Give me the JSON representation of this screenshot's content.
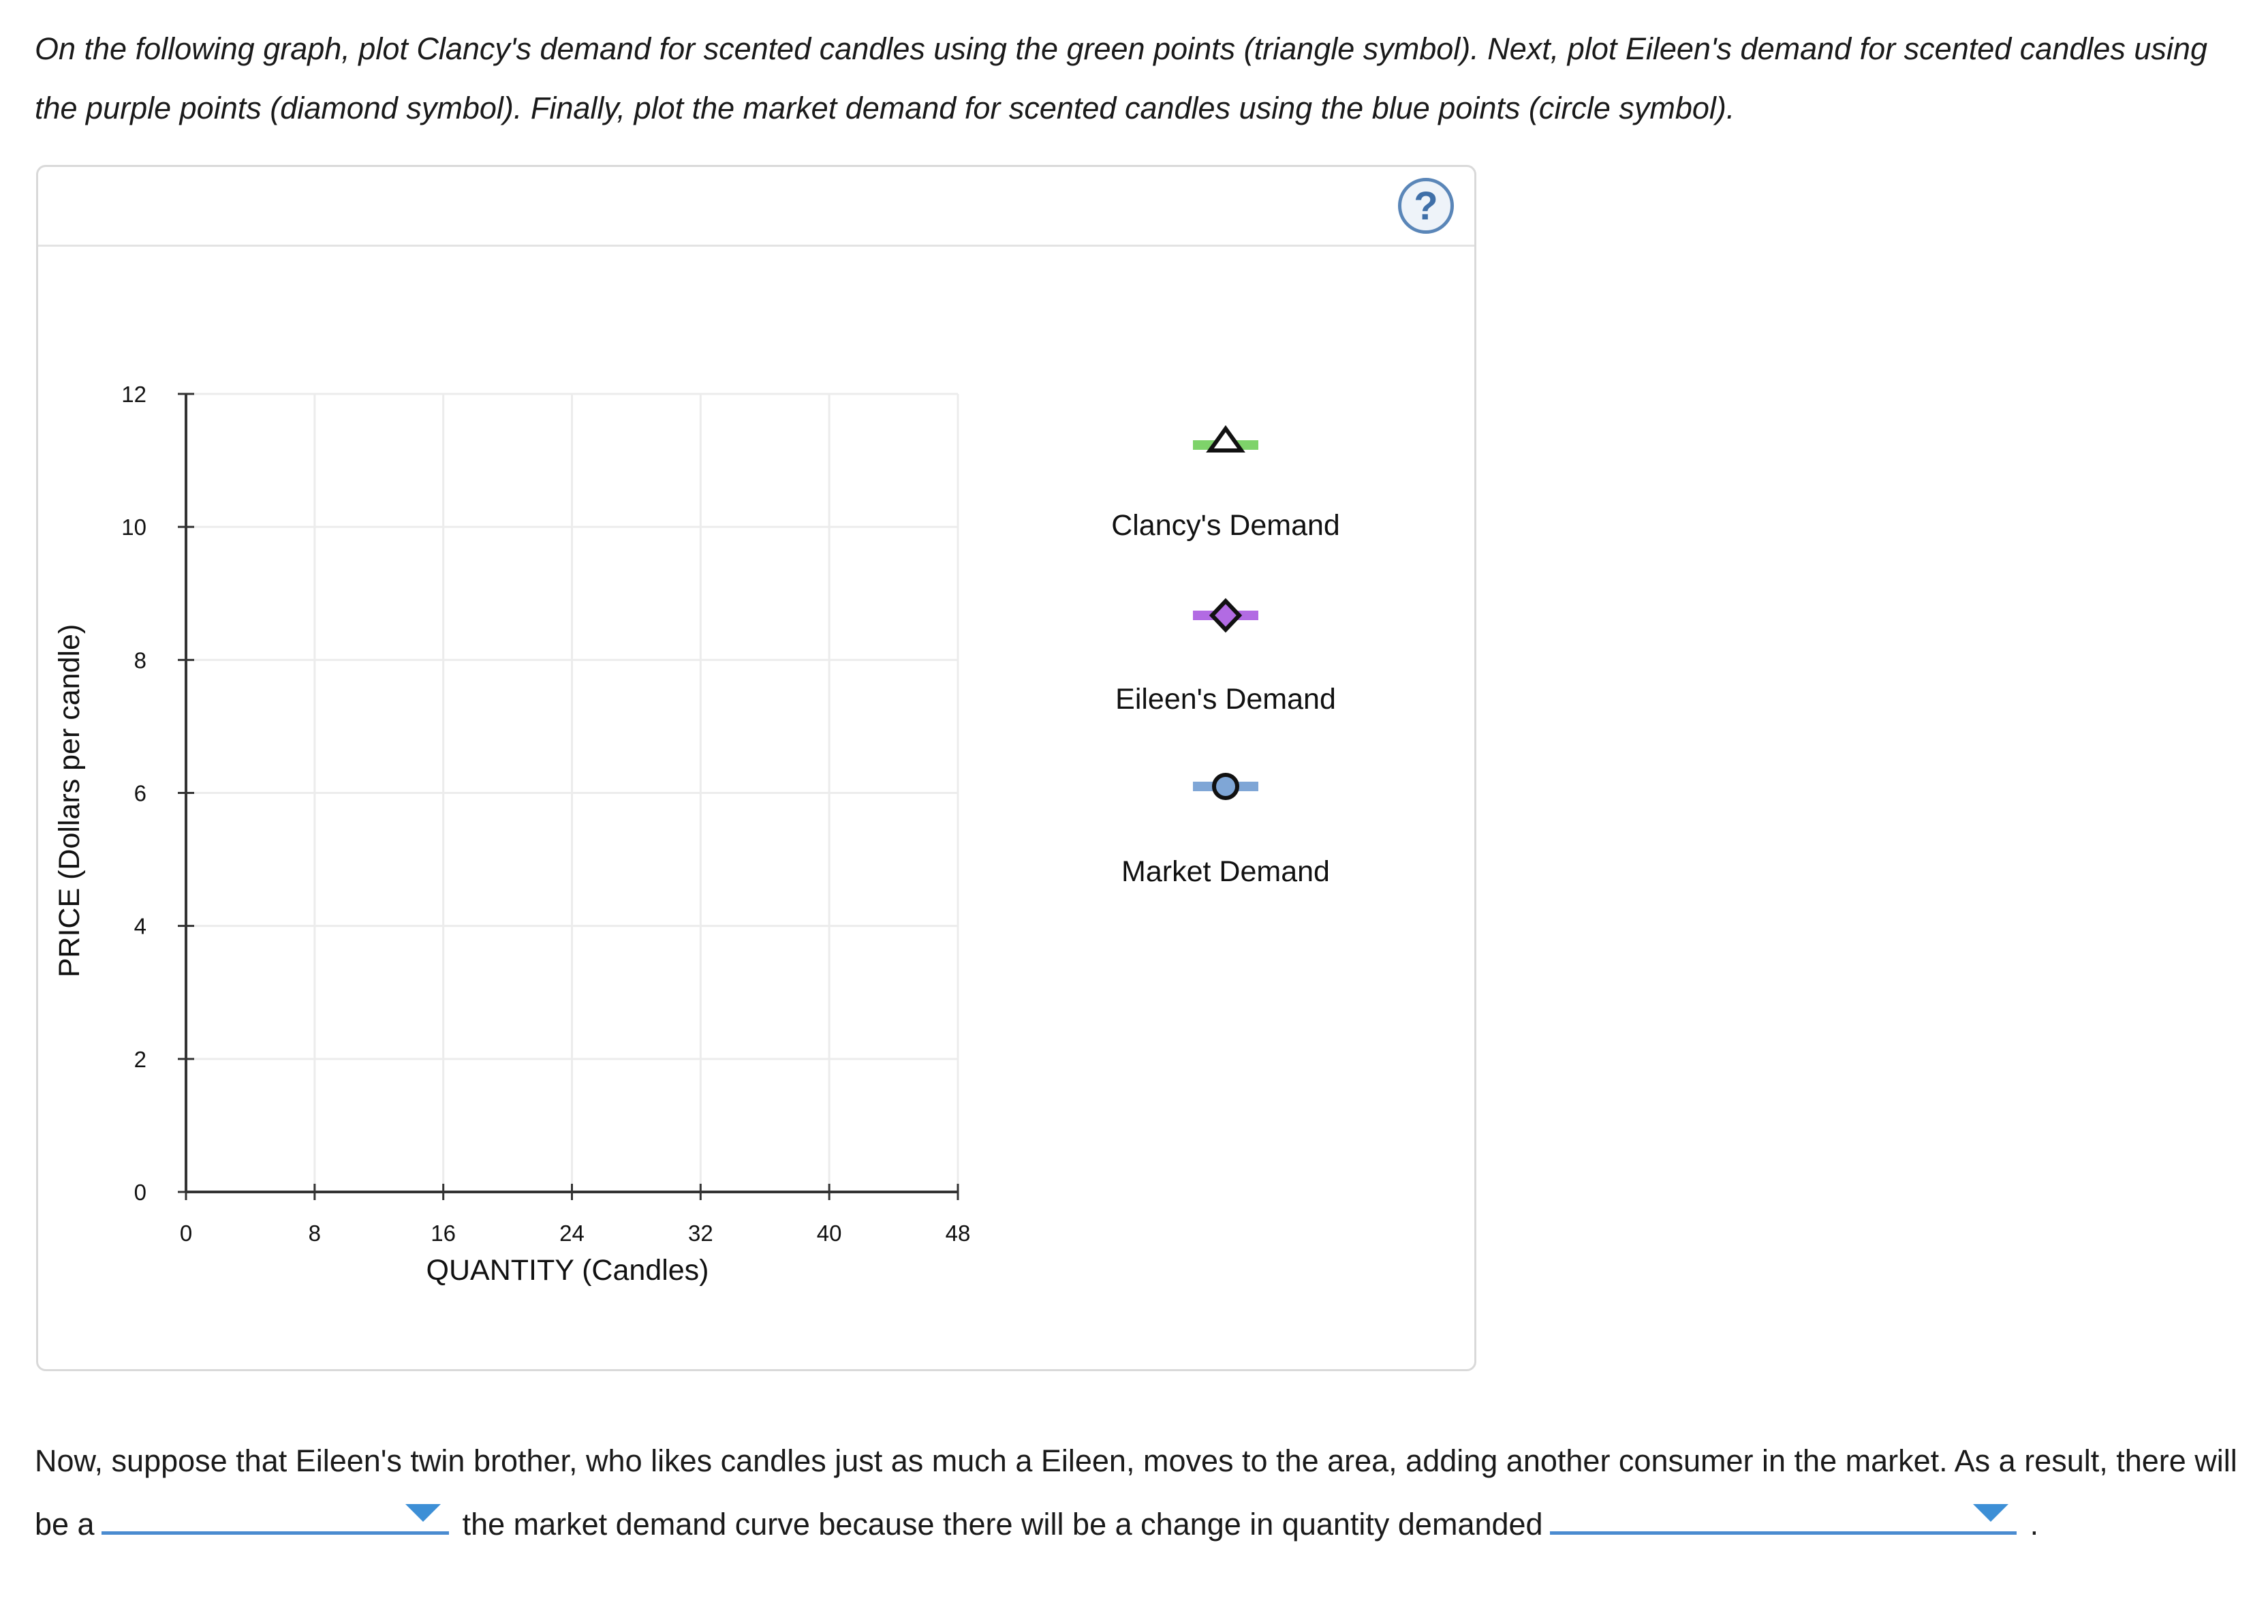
{
  "instructions": "On the following graph, plot Clancy's demand for scented candles using the green points (triangle symbol). Next, plot Eileen's demand for scented candles using the purple points (diamond symbol). Finally, plot the market demand for scented candles using the blue points (circle symbol).",
  "help_button": {
    "label": "?"
  },
  "chart_data": {
    "type": "scatter",
    "xlabel": "QUANTITY (Candles)",
    "ylabel": "PRICE (Dollars per candle)",
    "xlim": [
      0,
      48
    ],
    "ylim": [
      0,
      12
    ],
    "x_ticks": [
      "0",
      "8",
      "16",
      "24",
      "32",
      "40",
      "48"
    ],
    "y_ticks": [
      "0",
      "2",
      "4",
      "6",
      "8",
      "10",
      "12"
    ],
    "grid": true,
    "series": [
      {
        "name": "Clancy's Demand",
        "symbol": "triangle",
        "color": "#7ed36a",
        "points": []
      },
      {
        "name": "Eileen's Demand",
        "symbol": "diamond",
        "color": "#b26be3",
        "points": []
      },
      {
        "name": "Market Demand",
        "symbol": "circle",
        "color": "#7fa6d6",
        "points": []
      }
    ],
    "legend_position": "right"
  },
  "question": {
    "part1": "Now, suppose that Eileen's twin brother, who likes candles just as much a Eileen, moves to the area, adding another consumer in the market. As a result, there will be a",
    "part2": "the market demand curve because there will be a change in quantity demanded",
    "part3": ".",
    "dropdown1_value": "",
    "dropdown2_value": ""
  },
  "colors": {
    "accent": "#3d8fd6",
    "help": "#5a86b8"
  }
}
